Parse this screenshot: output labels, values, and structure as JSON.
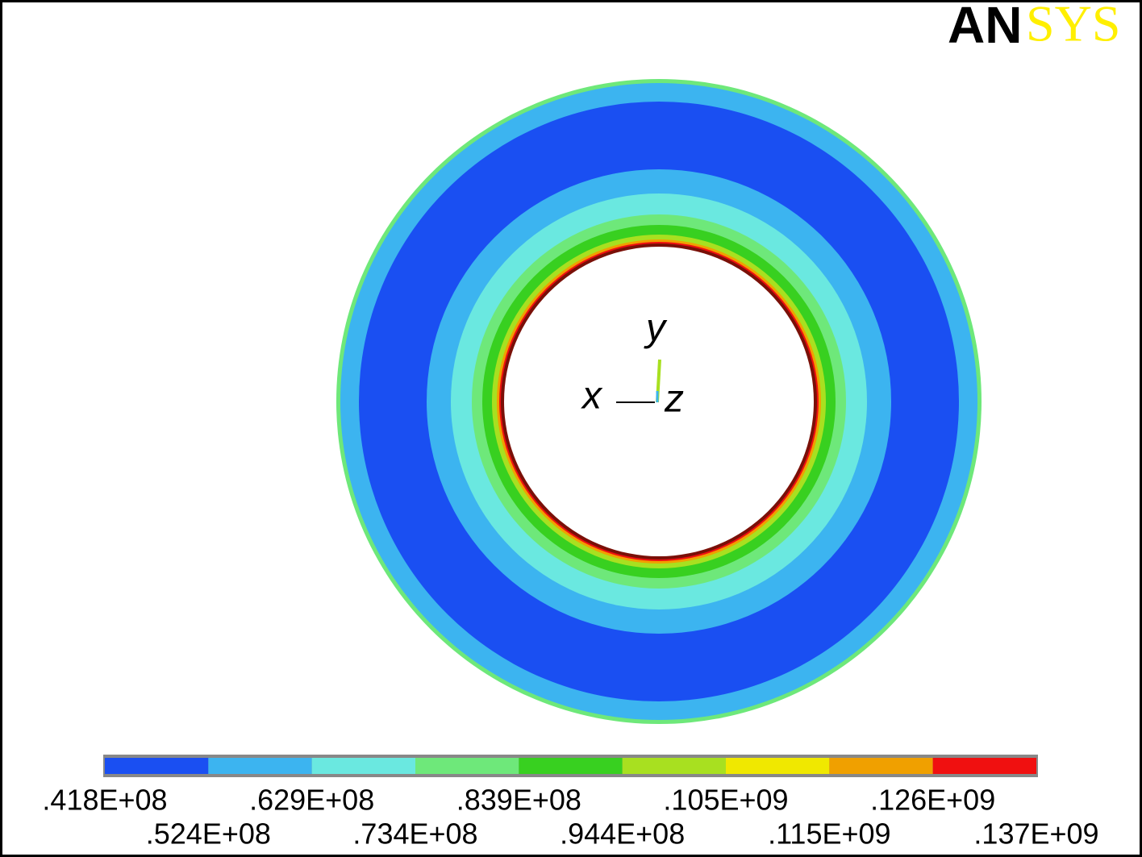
{
  "logo": {
    "part1": "AN",
    "part2": "SYS"
  },
  "triad": {
    "x": "x",
    "y": "y",
    "z": "z"
  },
  "legend": {
    "colors": [
      "#1a4ff2",
      "#3cb4f0",
      "#6ae8e0",
      "#6ee87a",
      "#38d020",
      "#a8e020",
      "#f0e800",
      "#f0a000",
      "#f01010"
    ],
    "labels": [
      ".418E+08",
      ".524E+08",
      ".629E+08",
      ".734E+08",
      ".839E+08",
      ".944E+08",
      ".105E+09",
      ".115E+09",
      ".126E+09",
      ".137E+09"
    ]
  }
}
